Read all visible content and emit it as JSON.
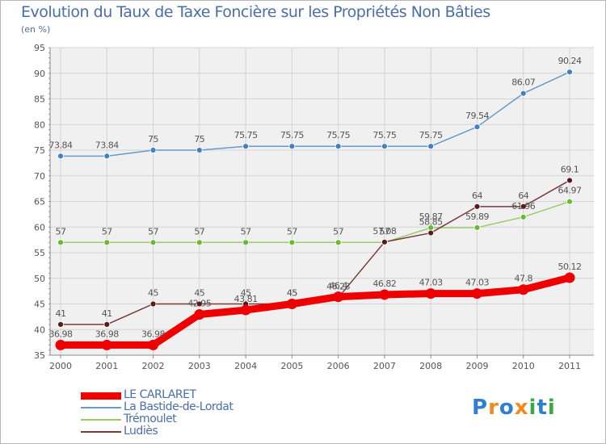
{
  "chart_data": {
    "type": "line",
    "title": "Evolution du Taux de Taxe Foncière sur les Propriétés Non Bâties",
    "ylabel": "(en %)",
    "xlabel": "",
    "ylim": [
      35,
      95
    ],
    "yticks": [
      "35",
      "40",
      "45",
      "50",
      "55",
      "60",
      "65",
      "70",
      "75",
      "80",
      "85",
      "90",
      "95"
    ],
    "categories": [
      "2000",
      "2001",
      "2002",
      "2003",
      "2004",
      "2005",
      "2006",
      "2007",
      "2008",
      "2009",
      "2010",
      "2011"
    ],
    "series": [
      {
        "name": "La Bastide-de-Lordat",
        "color": "#6699cc",
        "marker": "#3f82c2",
        "values": [
          73.84,
          73.84,
          75,
          75,
          75.75,
          75.75,
          75.75,
          75.75,
          75.75,
          79.54,
          86.07,
          90.24
        ],
        "labels": [
          "73.84",
          "73.84",
          "75",
          "75",
          "75.75",
          "75.75",
          "75.75",
          "75.75",
          "75.75",
          "79.54",
          "86.07",
          "90.24"
        ]
      },
      {
        "name": "Trémoulet",
        "color": "#99cc66",
        "marker": "#66bb33",
        "values": [
          57,
          57,
          57,
          57,
          57,
          57,
          57,
          57,
          59.87,
          59.89,
          61.96,
          64.97
        ],
        "labels": [
          "57",
          "57",
          "57",
          "57",
          "57",
          "57",
          "57",
          "57",
          "59.87",
          "59.89",
          "61.96",
          "64.97"
        ]
      },
      {
        "name": "Ludiès",
        "color": "#7a3a3a",
        "marker": "#5a1a1a",
        "values": [
          41,
          41,
          45,
          45,
          45,
          45,
          46.23,
          57.08,
          58.85,
          64,
          64,
          69.1
        ],
        "labels": [
          "41",
          "41",
          "45",
          "45",
          "45",
          "45",
          "46.23",
          "57.08",
          "58.85",
          "64",
          "64",
          "69.1"
        ]
      },
      {
        "name": "LE CARLARET",
        "color": "#ee0000",
        "marker": "#ee0000",
        "values": [
          36.98,
          36.98,
          36.98,
          42.95,
          43.81,
          45,
          46.4,
          46.82,
          47.03,
          47.03,
          47.8,
          50.12
        ],
        "labels": [
          "36.98",
          "36.98",
          "36.98",
          "42.95",
          "43.81",
          "45",
          "46.4",
          "46.82",
          "47.03",
          "47.03",
          "47.8",
          "50.12"
        ]
      }
    ],
    "legend": [
      {
        "name": "LE CARLARET",
        "color": "#ee0000",
        "thick": true
      },
      {
        "name": "La Bastide-de-Lordat",
        "color": "#6699cc",
        "thick": false
      },
      {
        "name": "Trémoulet",
        "color": "#99cc66",
        "thick": false
      },
      {
        "name": "Ludiès",
        "color": "#7a3a3a",
        "thick": false
      }
    ]
  },
  "logo": {
    "letters": [
      "P",
      "r",
      "o",
      "x",
      "i",
      "t",
      "i"
    ],
    "colors": [
      "#2f7fd0",
      "#f08a1c",
      "#2f7fd0",
      "#f08a1c",
      "#39a845",
      "#2f7fd0",
      "#39a845"
    ]
  }
}
